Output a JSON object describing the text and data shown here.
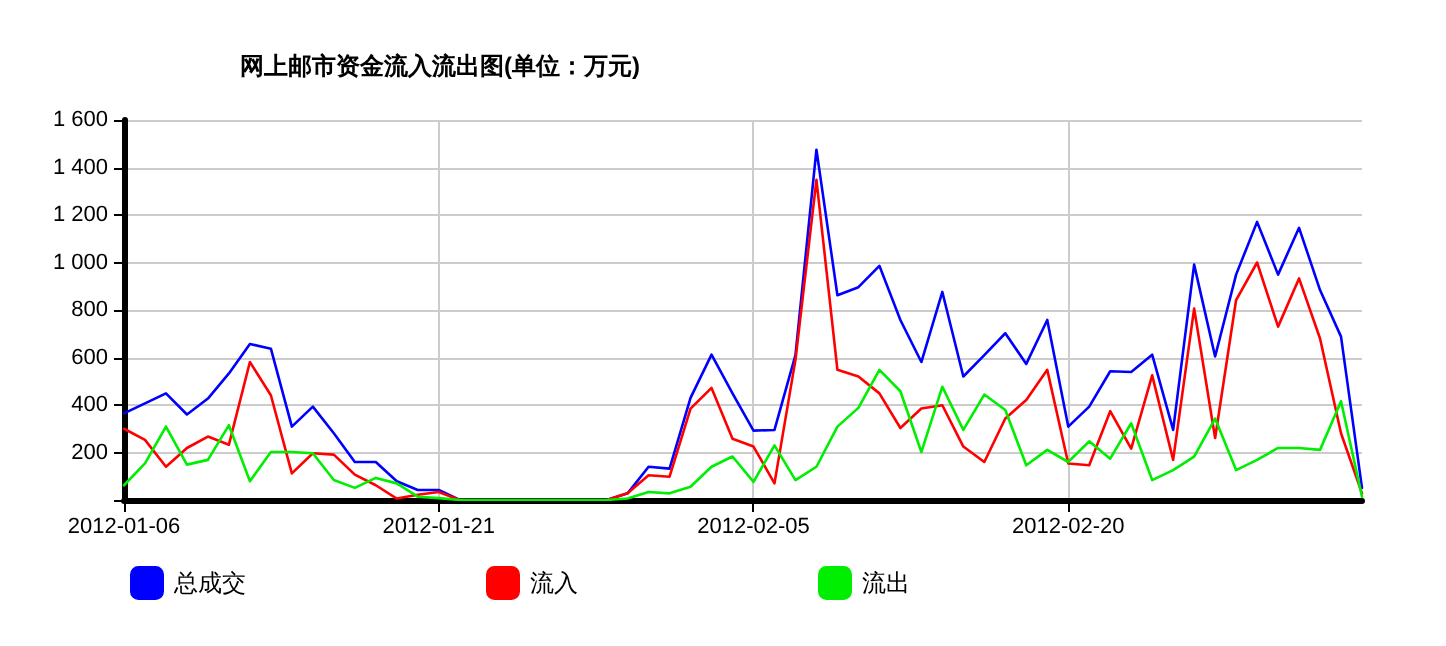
{
  "chart_data": {
    "type": "line",
    "title": "网上邮市资金流入流出图(单位：万元)",
    "x": [
      "2012-01-06",
      "2012-01-07",
      "2012-01-08",
      "2012-01-09",
      "2012-01-10",
      "2012-01-11",
      "2012-01-12",
      "2012-01-13",
      "2012-01-14",
      "2012-01-15",
      "2012-01-16",
      "2012-01-17",
      "2012-01-18",
      "2012-01-19",
      "2012-01-20",
      "2012-01-21",
      "2012-01-22",
      "2012-01-23",
      "2012-01-24",
      "2012-01-25",
      "2012-01-26",
      "2012-01-27",
      "2012-01-28",
      "2012-01-29",
      "2012-01-30",
      "2012-01-31",
      "2012-02-01",
      "2012-02-02",
      "2012-02-03",
      "2012-02-04",
      "2012-02-05",
      "2012-02-06",
      "2012-02-07",
      "2012-02-08",
      "2012-02-09",
      "2012-02-10",
      "2012-02-11",
      "2012-02-12",
      "2012-02-13",
      "2012-02-14",
      "2012-02-15",
      "2012-02-16",
      "2012-02-17",
      "2012-02-18",
      "2012-02-19",
      "2012-02-20",
      "2012-02-21",
      "2012-02-22",
      "2012-02-23",
      "2012-02-24",
      "2012-02-25",
      "2012-02-26",
      "2012-02-27",
      "2012-02-28",
      "2012-02-29",
      "2012-03-01",
      "2012-03-02",
      "2012-03-03",
      "2012-03-04",
      "2012-03-05"
    ],
    "series": [
      {
        "name": "总成交",
        "color": "#0000ff",
        "values": [
          365,
          407,
          449,
          360,
          427,
          533,
          657,
          637,
          309,
          393,
          281,
          160,
          160,
          79,
          42,
          42,
          0,
          0,
          0,
          0,
          0,
          0,
          0,
          0,
          28,
          140,
          132,
          430,
          612,
          449,
          292,
          295,
          610,
          1475,
          862,
          896,
          986,
          758,
          581,
          876,
          520,
          610,
          702,
          573,
          758,
          309,
          393,
          542,
          539,
          612,
          295,
          991,
          604,
          949,
          1171,
          949,
          1146,
          884,
          688,
          51
        ]
      },
      {
        "name": "流入",
        "color": "#ff0000",
        "values": [
          300,
          253,
          140,
          219,
          267,
          233,
          581,
          441,
          112,
          197,
          191,
          107,
          62,
          6,
          22,
          34,
          0,
          0,
          0,
          0,
          0,
          0,
          0,
          0,
          28,
          104,
          98,
          385,
          472,
          258,
          225,
          70,
          590,
          1348,
          548,
          520,
          449,
          303,
          385,
          399,
          225,
          160,
          343,
          421,
          548,
          154,
          146,
          374,
          216,
          525,
          169,
          806,
          261,
          842,
          1000,
          730,
          933,
          680,
          281,
          28
        ]
      },
      {
        "name": "流出",
        "color": "#00ee00",
        "values": [
          62,
          154,
          309,
          149,
          169,
          315,
          79,
          202,
          202,
          197,
          84,
          51,
          93,
          70,
          14,
          8,
          0,
          0,
          0,
          0,
          0,
          0,
          0,
          0,
          6,
          34,
          28,
          56,
          140,
          183,
          76,
          230,
          84,
          140,
          309,
          388,
          548,
          458,
          202,
          477,
          295,
          444,
          379,
          146,
          211,
          160,
          247,
          174,
          323,
          84,
          126,
          183,
          343,
          126,
          169,
          219,
          219,
          211,
          416,
          14
        ]
      }
    ],
    "xlim": [
      "2012-01-06",
      "2012-03-05"
    ],
    "xticks": [
      "2012-01-06",
      "2012-01-21",
      "2012-02-05",
      "2012-02-20"
    ],
    "ylim": [
      0,
      1600
    ],
    "yticks": [
      {
        "value": 0,
        "label": null
      },
      200,
      400,
      600,
      800,
      {
        "value": 1000,
        "label": "1 000"
      },
      {
        "value": 1200,
        "label": "1 200"
      },
      {
        "value": 1400,
        "label": "1 400"
      },
      {
        "value": 1600,
        "label": "1 600"
      }
    ],
    "grid": true,
    "legend": "bottom",
    "marker": "none",
    "line_style": "solid"
  }
}
